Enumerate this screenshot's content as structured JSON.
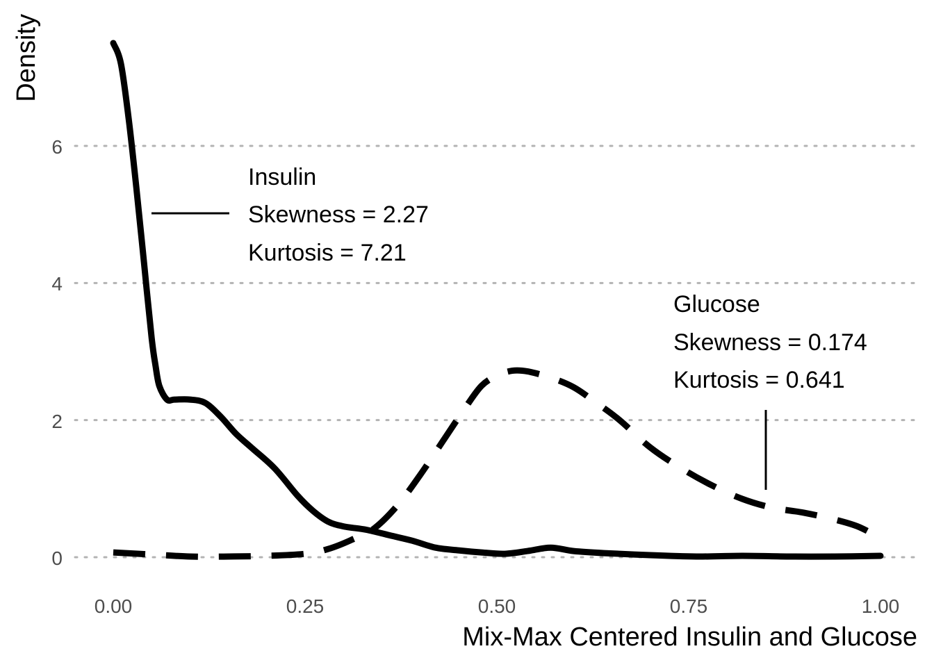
{
  "chart_data": {
    "type": "line",
    "title": "",
    "xlabel": "Mix-Max Centered Insulin and Glucose",
    "ylabel": "Density",
    "xlim": [
      -0.05,
      1.05
    ],
    "ylim": [
      -0.15,
      7.6
    ],
    "x_ticks": [
      "0.00",
      "0.25",
      "0.50",
      "0.75",
      "1.00"
    ],
    "y_ticks": [
      "0",
      "2",
      "4",
      "6"
    ],
    "grid": "horizontal dotted",
    "series": [
      {
        "name": "Insulin",
        "line_style": "solid",
        "color": "#000000",
        "x": [
          0.0,
          0.01,
          0.02,
          0.03,
          0.04,
          0.05,
          0.055,
          0.06,
          0.07,
          0.08,
          0.1,
          0.12,
          0.14,
          0.16,
          0.18,
          0.21,
          0.24,
          0.26,
          0.28,
          0.3,
          0.33,
          0.36,
          0.39,
          0.42,
          0.45,
          0.48,
          0.51,
          0.54,
          0.57,
          0.6,
          0.64,
          0.7,
          0.76,
          0.82,
          0.88,
          0.94,
          1.0
        ],
        "y": [
          7.5,
          7.2,
          6.4,
          5.4,
          4.3,
          3.2,
          2.8,
          2.5,
          2.3,
          2.3,
          2.3,
          2.25,
          2.05,
          1.8,
          1.6,
          1.3,
          0.9,
          0.68,
          0.52,
          0.45,
          0.4,
          0.32,
          0.24,
          0.14,
          0.1,
          0.07,
          0.05,
          0.09,
          0.14,
          0.09,
          0.06,
          0.03,
          0.01,
          0.02,
          0.01,
          0.01,
          0.02
        ]
      },
      {
        "name": "Glucose",
        "line_style": "dashed",
        "color": "#000000",
        "x": [
          0.0,
          0.05,
          0.1,
          0.15,
          0.2,
          0.25,
          0.28,
          0.31,
          0.34,
          0.37,
          0.4,
          0.43,
          0.46,
          0.48,
          0.5,
          0.52,
          0.54,
          0.57,
          0.6,
          0.63,
          0.66,
          0.7,
          0.74,
          0.78,
          0.82,
          0.86,
          0.9,
          0.94,
          0.97,
          1.0
        ],
        "y": [
          0.07,
          0.04,
          0.01,
          0.01,
          0.02,
          0.05,
          0.12,
          0.25,
          0.42,
          0.75,
          1.2,
          1.7,
          2.2,
          2.5,
          2.65,
          2.72,
          2.71,
          2.62,
          2.48,
          2.25,
          2.0,
          1.6,
          1.3,
          1.05,
          0.85,
          0.72,
          0.65,
          0.55,
          0.45,
          0.28
        ]
      }
    ],
    "annotations": [
      {
        "name": "insulin-annotation",
        "lines": [
          "Insulin",
          "Skewness = 2.27",
          "Kurtosis = 7.21"
        ],
        "leader": "horizontal solid line"
      },
      {
        "name": "glucose-annotation",
        "lines": [
          "Glucose",
          "Skewness = 0.174",
          "Kurtosis = 0.641"
        ],
        "leader": "vertical solid line"
      }
    ]
  }
}
